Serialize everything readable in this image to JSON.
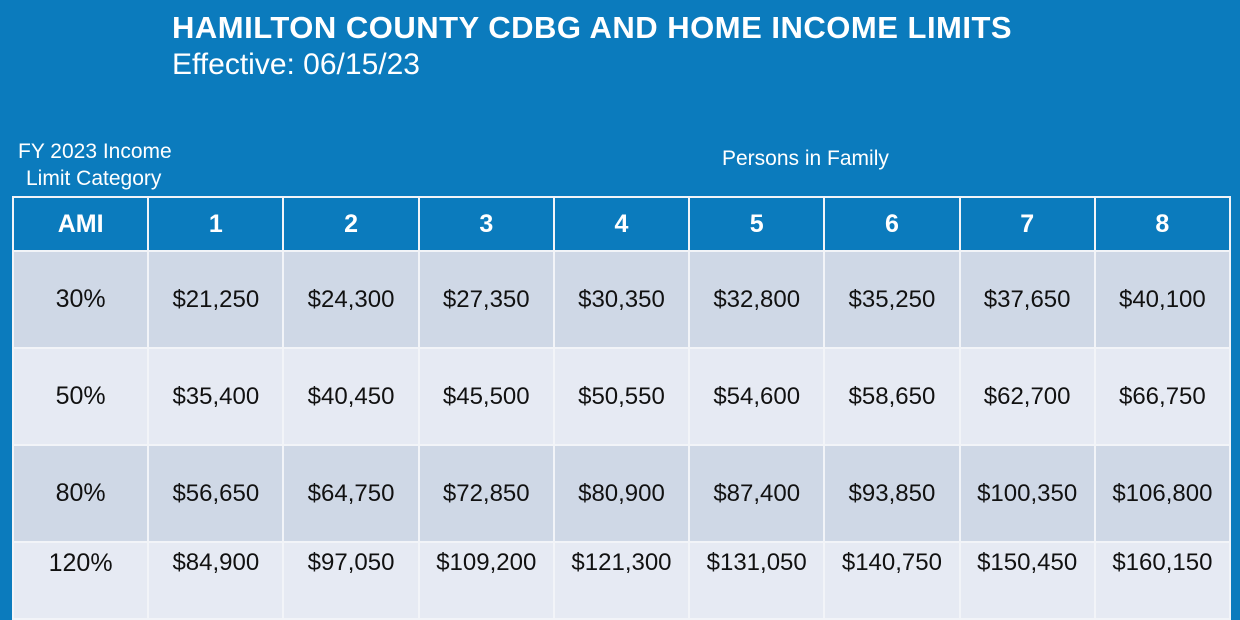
{
  "header": {
    "title": "HAMILTON COUNTY CDBG AND HOME INCOME LIMITS",
    "subtitle": "Effective: 06/15/23"
  },
  "labels": {
    "category_line1": "FY 2023 Income",
    "category_line2": "Limit Category",
    "persons": "Persons in Family"
  },
  "table": {
    "columns": [
      "AMI",
      "1",
      "2",
      "3",
      "4",
      "5",
      "6",
      "7",
      "8"
    ],
    "rows": [
      [
        "30%",
        "$21,250",
        "$24,300",
        "$27,350",
        "$30,350",
        "$32,800",
        "$35,250",
        "$37,650",
        "$40,100"
      ],
      [
        "50%",
        "$35,400",
        "$40,450",
        "$45,500",
        "$50,550",
        "$54,600",
        "$58,650",
        "$62,700",
        "$66,750"
      ],
      [
        "80%",
        "$56,650",
        "$64,750",
        "$72,850",
        "$80,900",
        "$87,400",
        "$93,850",
        "$100,350",
        "$106,800"
      ],
      [
        "120%",
        "$84,900",
        "$97,050",
        "$109,200",
        "$121,300",
        "$131,050",
        "$140,750",
        "$150,450",
        "$160,150"
      ]
    ]
  }
}
